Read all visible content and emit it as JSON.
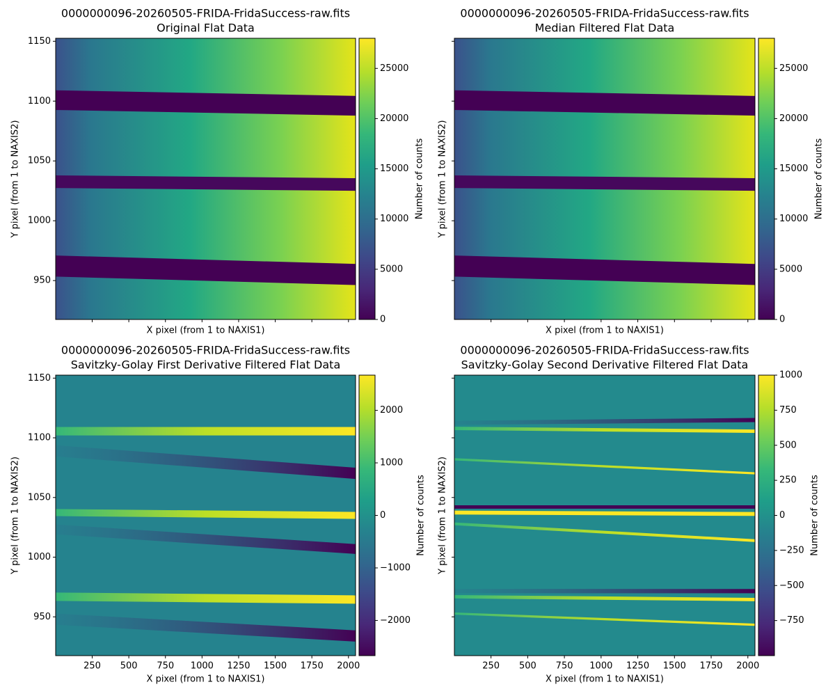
{
  "chart_data": [
    {
      "type": "heatmap",
      "title": "0000000096-20260505-FRIDA-FridaSuccess-raw.fits",
      "subtitle": "Original Flat Data",
      "xlabel": "X pixel (from 1 to NAXIS1)",
      "ylabel": "Y pixel (from 1 to NAXIS2)",
      "xlim": [
        0.5,
        2048.5
      ],
      "ylim": [
        917.5,
        1152.5
      ],
      "xticks": [
        250,
        500,
        750,
        1000,
        1250,
        1500,
        1750,
        2000
      ],
      "yticks": [
        950,
        1000,
        1050,
        1100,
        1150
      ],
      "xtick_labels": false,
      "ytick_labels": true,
      "colormap": "viridis",
      "colorbar": {
        "label": "Number of counts",
        "lim": [
          0,
          28000
        ],
        "ticks": [
          0,
          5000,
          10000,
          15000,
          20000,
          25000
        ]
      }
    },
    {
      "type": "heatmap",
      "title": "0000000096-20260505-FRIDA-FridaSuccess-raw.fits",
      "subtitle": "Median Filtered Flat Data",
      "xlabel": "X pixel (from 1 to NAXIS1)",
      "ylabel": "Y pixel (from 1 to NAXIS2)",
      "xlim": [
        0.5,
        2048.5
      ],
      "ylim": [
        917.5,
        1152.5
      ],
      "xticks": [
        250,
        500,
        750,
        1000,
        1250,
        1500,
        1750,
        2000
      ],
      "yticks": [
        950,
        1000,
        1050,
        1100,
        1150
      ],
      "xtick_labels": false,
      "ytick_labels": false,
      "colormap": "viridis",
      "colorbar": {
        "label": "Number of counts",
        "lim": [
          0,
          28000
        ],
        "ticks": [
          0,
          5000,
          10000,
          15000,
          20000,
          25000
        ]
      }
    },
    {
      "type": "heatmap",
      "title": "0000000096-20260505-FRIDA-FridaSuccess-raw.fits",
      "subtitle": "Savitzky-Golay First Derivative Filtered Flat Data",
      "xlabel": "X pixel (from 1 to NAXIS1)",
      "ylabel": "Y pixel (from 1 to NAXIS2)",
      "xlim": [
        0.5,
        2048.5
      ],
      "ylim": [
        917.5,
        1152.5
      ],
      "xticks": [
        250,
        500,
        750,
        1000,
        1250,
        1500,
        1750,
        2000
      ],
      "yticks": [
        950,
        1000,
        1050,
        1100,
        1150
      ],
      "xtick_labels": true,
      "ytick_labels": true,
      "colormap": "viridis",
      "colorbar": {
        "label": "Number of counts",
        "lim": [
          -2670,
          2670
        ],
        "ticks": [
          {
            "value": -2000,
            "label": "−2000"
          },
          {
            "value": -1000,
            "label": "−1000"
          },
          0,
          1000,
          2000
        ]
      }
    },
    {
      "type": "heatmap",
      "title": "0000000096-20260505-FRIDA-FridaSuccess-raw.fits",
      "subtitle": "Savitzky-Golay Second Derivative Filtered Flat Data",
      "xlabel": "X pixel (from 1 to NAXIS1)",
      "ylabel": "Y pixel (from 1 to NAXIS2)",
      "xlim": [
        0.5,
        2048.5
      ],
      "ylim": [
        917.5,
        1152.5
      ],
      "xticks": [
        250,
        500,
        750,
        1000,
        1250,
        1500,
        1750,
        2000
      ],
      "yticks": [
        950,
        1000,
        1050,
        1100,
        1150
      ],
      "xtick_labels": true,
      "ytick_labels": false,
      "colormap": "viridis",
      "colorbar": {
        "label": "Number of counts",
        "lim": [
          -1000,
          1000
        ],
        "ticks": [
          {
            "value": -750,
            "label": "−750"
          },
          {
            "value": -500,
            "label": "−500"
          },
          {
            "value": -250,
            "label": "−250"
          },
          0,
          250,
          500,
          750,
          1000
        ]
      }
    }
  ]
}
